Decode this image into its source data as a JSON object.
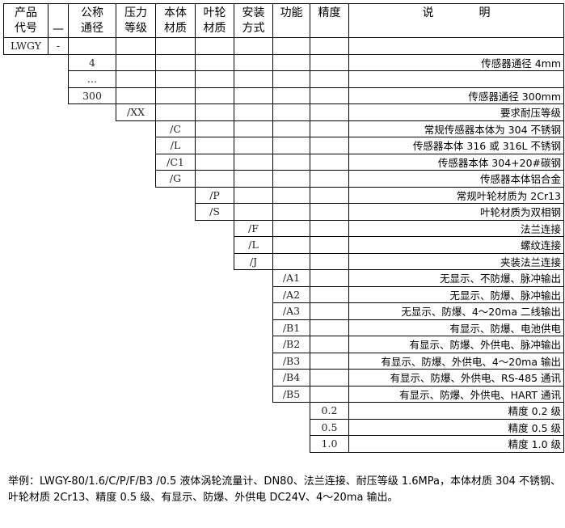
{
  "headers": [
    "产品\n代号",
    "—",
    "公称\n通径",
    "压力\n等级",
    "本体\n材质",
    "叶轮\n材质",
    "安装\n方式",
    "功能",
    "精度",
    "说　　　　明"
  ],
  "rows": [
    {
      "col": 0,
      "code": "LWGY",
      "sep": "-",
      "desc": ""
    },
    {
      "col": 2,
      "code": "4",
      "desc": "传感器通径 4mm"
    },
    {
      "col": 2,
      "code": "…",
      "desc": ""
    },
    {
      "col": 2,
      "code": "300",
      "desc": "传感器通径 300mm"
    },
    {
      "col": 3,
      "code": "/XX",
      "desc": "要求耐压等级"
    },
    {
      "col": 4,
      "code": "/C",
      "desc": "常规传感器本体为 304 不锈钢"
    },
    {
      "col": 4,
      "code": "/L",
      "desc": "传感器本体 316 或 316L 不锈钢"
    },
    {
      "col": 4,
      "code": "/C1",
      "desc": "传感器本体 304+20#碳钢"
    },
    {
      "col": 4,
      "code": "/G",
      "desc": "传感器本体铝合金"
    },
    {
      "col": 5,
      "code": "/P",
      "desc": "常规叶轮材质为 2Cr13"
    },
    {
      "col": 5,
      "code": "/S",
      "desc": "叶轮材质为双相钢"
    },
    {
      "col": 6,
      "code": "/F",
      "desc": "法兰连接"
    },
    {
      "col": 6,
      "code": "/L",
      "desc": "螺纹连接"
    },
    {
      "col": 6,
      "code": "/J",
      "desc": "夹装法兰连接"
    },
    {
      "col": 7,
      "code": "/A1",
      "desc": "无显示、不防爆、脉冲输出"
    },
    {
      "col": 7,
      "code": "/A2",
      "desc": "无显示、防爆、脉冲输出"
    },
    {
      "col": 7,
      "code": "/A3",
      "desc": "无显示、防爆、4～20ma 二线输出"
    },
    {
      "col": 7,
      "code": "/B1",
      "desc": "有显示、防爆、电池供电"
    },
    {
      "col": 7,
      "code": "/B2",
      "desc": "有显示、防爆、外供电、脉冲输出"
    },
    {
      "col": 7,
      "code": "/B3",
      "desc": "有显示、防爆、外供电、4～20ma 输出"
    },
    {
      "col": 7,
      "code": "/B4",
      "desc": "有显示、防爆、外供电、RS-485 通讯"
    },
    {
      "col": 7,
      "code": "/B5",
      "desc": "有显示、防爆、外供电、HART 通讯"
    },
    {
      "col": 8,
      "code": "0.2",
      "desc": "精度 0.2 级"
    },
    {
      "col": 8,
      "code": "0.5",
      "desc": "精度 0.5 级"
    },
    {
      "col": 8,
      "code": "1.0",
      "desc": "精度 1.0 级"
    }
  ],
  "example": "举例：LWGY-80/1.6/C/P/F/B3 /0.5 液体涡轮流量计、DN80、法兰连接、耐压等级 1.6MPa，本体材质 304 不锈钢、叶轮材质 2Cr13、精度 0.5 级、有显示、防爆、外供电 DC24V、4～20ma 输出。"
}
